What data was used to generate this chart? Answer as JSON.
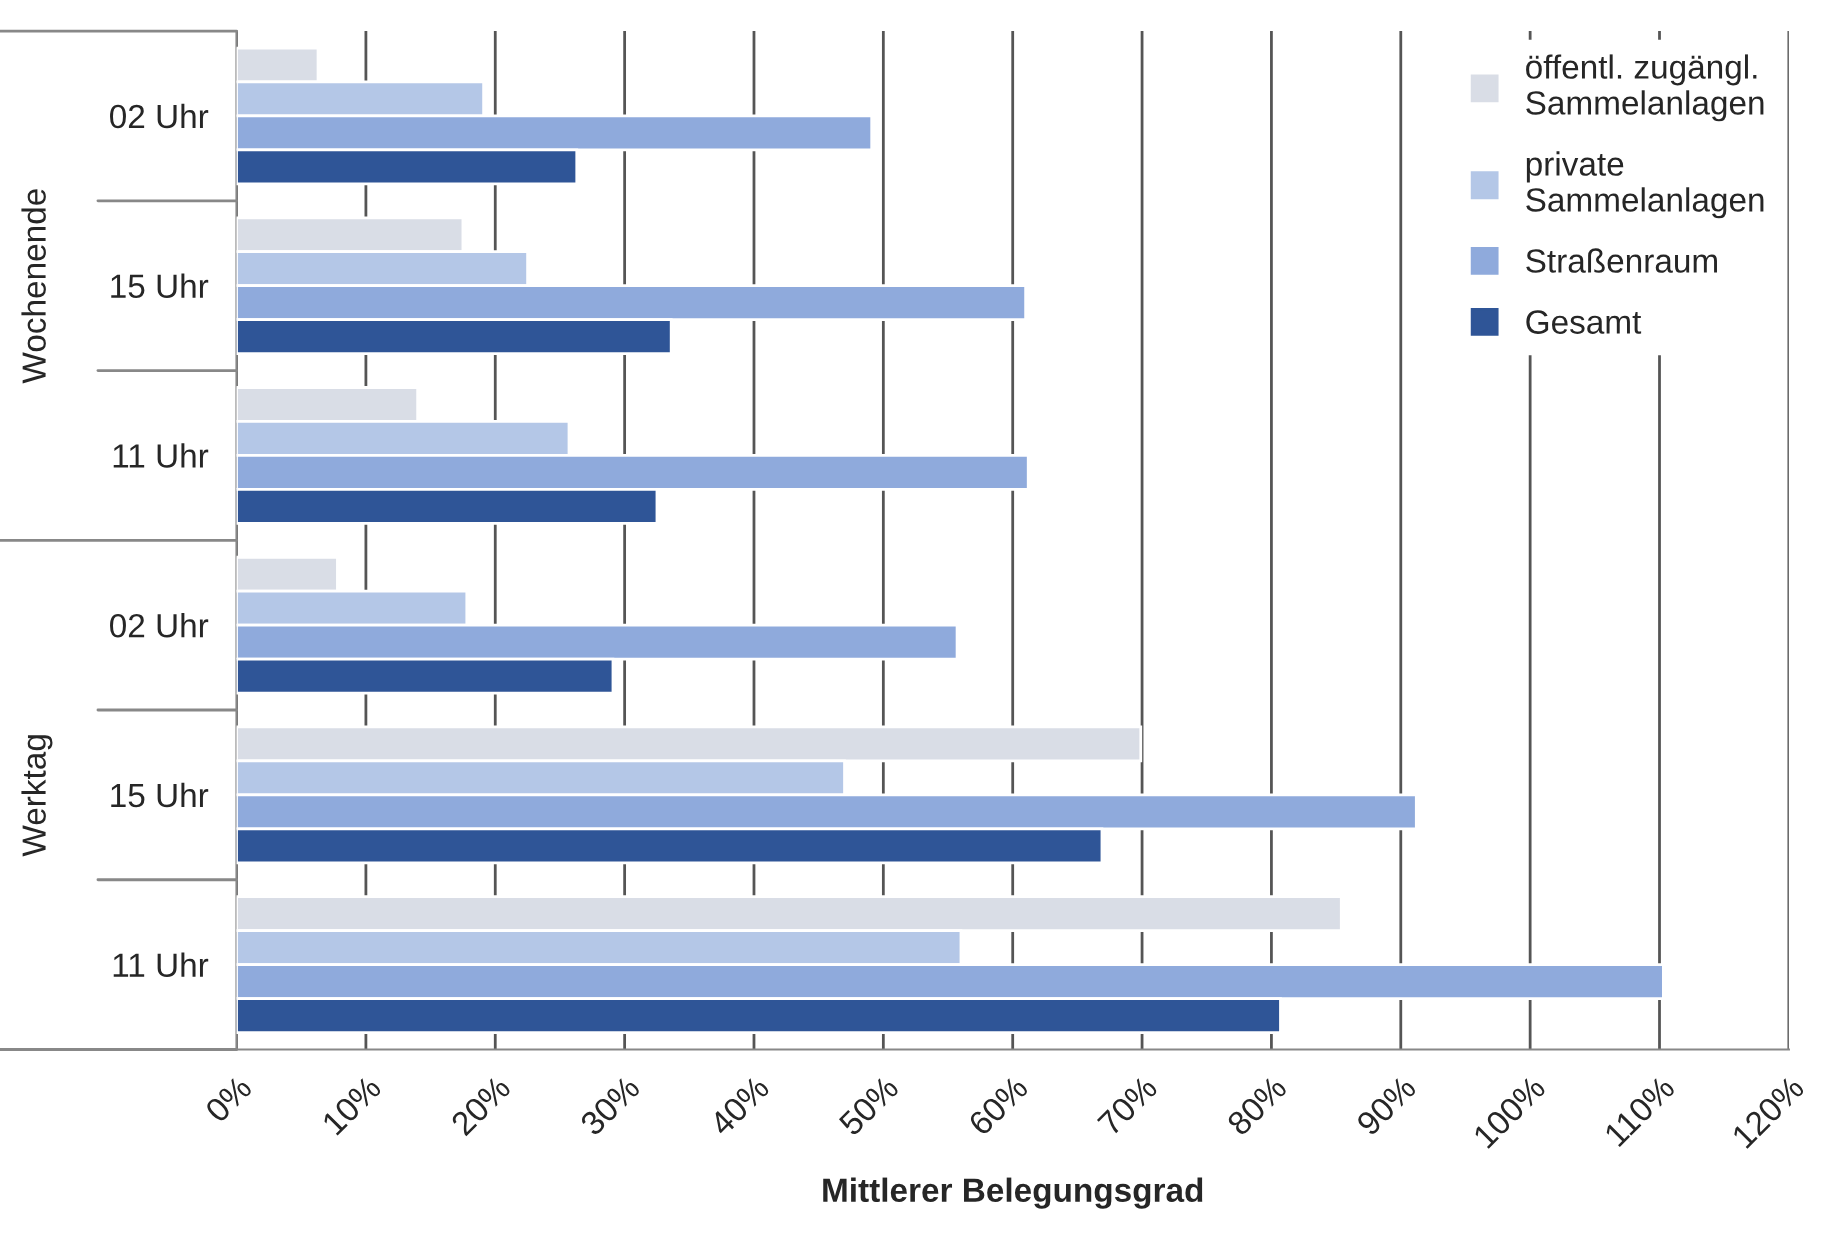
{
  "chart_data": {
    "type": "bar",
    "orientation": "horizontal",
    "xlabel": "Mittlerer Belegungsgrad",
    "categories": [
      "02 Uhr",
      "15 Uhr",
      "11 Uhr",
      "02 Uhr",
      "15 Uhr",
      "11 Uhr"
    ],
    "annotations": [
      "Wochenende",
      "Werktag"
    ],
    "series": [
      {
        "name": "öffentl. zugängl.\nSammelanlagen",
        "color": "#d9dde6",
        "values": [
          6.3,
          17.5,
          14,
          7.8,
          69.9,
          85.4
        ]
      },
      {
        "name": "private\nSammelanlagen",
        "color": "#b4c7e7",
        "values": [
          19.1,
          22.5,
          25.7,
          17.8,
          47,
          56
        ]
      },
      {
        "name": "Straßenraum",
        "color": "#8faadc",
        "values": [
          49.1,
          61,
          61.2,
          55.7,
          91.2,
          110.3
        ]
      },
      {
        "name": "Gesamt",
        "color": "#2f5597",
        "values": [
          26.3,
          33.6,
          32.5,
          29.1,
          66.9,
          80.7
        ]
      }
    ],
    "xlim": [
      0,
      120
    ],
    "xticks": [
      {
        "value": 0,
        "label": "0%"
      },
      {
        "value": 10,
        "label": "10%"
      },
      {
        "value": 20,
        "label": "20%"
      },
      {
        "value": 30,
        "label": "30%"
      },
      {
        "value": 40,
        "label": "40%"
      },
      {
        "value": 50,
        "label": "50%"
      },
      {
        "value": 60,
        "label": "60%"
      },
      {
        "value": 70,
        "label": "70%"
      },
      {
        "value": 80,
        "label": "80%"
      },
      {
        "value": 90,
        "label": "90%"
      },
      {
        "value": 100,
        "label": "100%"
      },
      {
        "value": 110,
        "label": "110%"
      },
      {
        "value": 120,
        "label": "120%"
      }
    ],
    "grid": "x",
    "legend": "top right"
  }
}
